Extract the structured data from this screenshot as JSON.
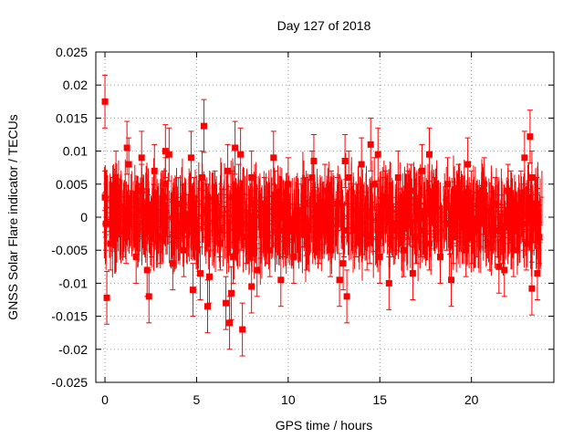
{
  "chart_data": {
    "type": "scatter",
    "title": "Day 127 of 2018",
    "xlabel": "GPS time / hours",
    "ylabel": "GNSS Solar Flare indicator / TECUs",
    "xlim": [
      -0.5,
      24.5
    ],
    "ylim": [
      -0.025,
      0.025
    ],
    "x_ticks": [
      0,
      5,
      10,
      15,
      20
    ],
    "x_tick_labels": [
      "0",
      "5",
      "10",
      "15",
      "20"
    ],
    "y_ticks": [
      -0.025,
      -0.02,
      -0.015,
      -0.01,
      -0.005,
      0,
      0.005,
      0.01,
      0.015,
      0.02,
      0.025
    ],
    "y_tick_labels": [
      "-0.025",
      "-0.02",
      "-0.015",
      "-0.01",
      "-0.005",
      "0",
      "0.005",
      "0.01",
      "0.015",
      "0.02",
      "0.025"
    ],
    "grid": true,
    "series_color": "#ff0000",
    "series": [
      {
        "name": "solar flare indicator",
        "error": 0.004,
        "x": [
          0,
          0.3,
          0.6,
          1,
          1.3,
          1.7,
          2,
          2.3,
          2.7,
          3,
          3.3,
          3.7,
          4,
          4.3,
          4.7,
          5,
          5.3,
          5.7,
          6,
          6.3,
          6.7,
          7,
          7.3,
          7.7,
          8,
          8.3,
          8.7,
          9,
          9.3,
          9.7,
          10,
          10.3,
          10.7,
          11,
          11.3,
          11.7,
          12,
          12.3,
          12.7,
          13,
          13.3,
          13.7,
          14,
          14.3,
          14.7,
          15,
          15.3,
          15.7,
          16,
          16.3,
          16.7,
          17,
          17.3,
          17.7,
          18,
          18.3,
          18.7,
          19,
          19.3,
          19.7,
          20,
          20.3,
          20.7,
          21,
          21.3,
          21.7,
          22,
          22.3,
          22.7,
          23,
          23.3,
          23.7,
          0.05,
          0.45,
          1.15,
          1.85,
          2.55,
          3.25,
          4.15,
          4.85,
          5.55,
          6.25,
          6.95,
          7.45,
          8.15,
          8.85,
          9.55,
          10.25,
          10.95,
          11.65,
          12.35,
          13.05,
          13.75,
          14.45,
          15.15,
          15.85,
          16.55,
          17.25,
          17.95,
          18.65,
          19.35,
          20.05,
          20.75,
          21.45,
          22.15,
          22.85,
          23.55,
          0,
          1.2,
          2.4,
          3.5,
          4.8,
          5.4,
          5.6,
          6.9,
          7.4,
          7.5,
          9.6,
          11.4,
          13.2,
          14.5,
          15.5,
          17.7,
          18.9,
          21.8,
          23.2,
          23.3,
          0.1,
          2.0,
          3.3,
          5.2,
          6.6,
          6.8,
          7.1,
          8.0,
          9.2,
          12.8,
          13.1,
          14.9,
          16.8,
          19.8,
          21.5,
          22.9,
          23.6
        ],
        "y": [
          0.003,
          -0.004,
          0.006,
          -0.002,
          0.008,
          -0.006,
          0.004,
          -0.008,
          0.007,
          -0.003,
          0.005,
          -0.007,
          0.002,
          -0.005,
          0.009,
          -0.001,
          0.006,
          -0.009,
          0.003,
          -0.004,
          0.007,
          -0.006,
          0.004,
          -0.003,
          0.006,
          -0.008,
          0.002,
          -0.005,
          0.003,
          -0.002,
          0.005,
          -0.006,
          0.001,
          -0.004,
          0.006,
          -0.003,
          0.004,
          -0.005,
          0.002,
          -0.007,
          0.006,
          -0.002,
          0.008,
          -0.004,
          0.005,
          -0.006,
          0.003,
          -0.002,
          0.006,
          -0.005,
          0.004,
          -0.003,
          0.007,
          -0.004,
          0.002,
          -0.006,
          0.005,
          -0.003,
          0.004,
          -0.005,
          0.003,
          -0.002,
          0.005,
          -0.004,
          0.002,
          -0.003,
          0.004,
          -0.005,
          0.003,
          -0.004,
          0.006,
          -0.003,
          -0.001,
          0.002,
          -0.003,
          0.001,
          -0.002,
          0.003,
          -0.001,
          0.002,
          0.001,
          -0.002,
          0.003,
          -0.001,
          0.002,
          -0.003,
          0.001,
          -0.002,
          0.002,
          -0.001,
          0.003,
          -0.002,
          0.001,
          -0.003,
          0.002,
          -0.001,
          0.003,
          -0.002,
          0.001,
          -0.001,
          0.002,
          -0.003,
          0.001,
          -0.002,
          0.003,
          -0.001,
          0.002,
          0.0175,
          0.0105,
          -0.012,
          0.0095,
          -0.011,
          0.0138,
          -0.0135,
          -0.0115,
          0.0095,
          -0.017,
          -0.0095,
          0.0085,
          -0.012,
          0.011,
          -0.01,
          0.0095,
          -0.0095,
          -0.008,
          0.0122,
          -0.0108,
          -0.0122,
          0.009,
          0.01,
          -0.0085,
          -0.013,
          -0.016,
          0.0105,
          -0.0105,
          0.009,
          -0.0095,
          0.0085,
          0.0095,
          -0.0085,
          0.008,
          -0.0075,
          0.009,
          -0.0085
        ]
      }
    ]
  }
}
